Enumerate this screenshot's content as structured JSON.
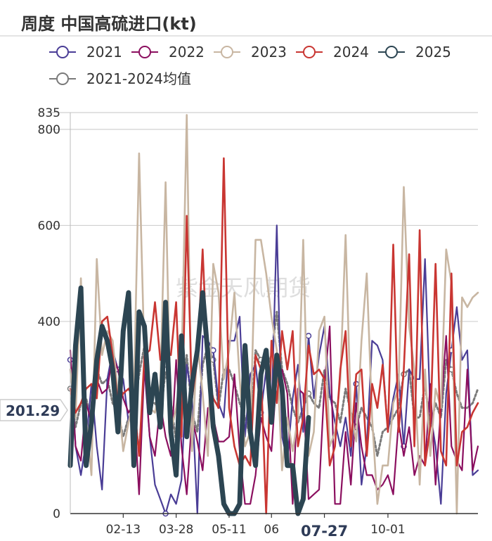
{
  "title": "周度 中国高硫进口(kt)",
  "watermark": "紫金天风期货",
  "pointer_value": "201.29",
  "colors": {
    "s2021": "#4a3d96",
    "s2022": "#8b0f5f",
    "s2023": "#c8b6a2",
    "s2024": "#c93632",
    "s2025": "#2c4552",
    "avg": "#7a7a7a",
    "grid": "#d0d0d0",
    "axis": "#333333"
  },
  "chart_data": {
    "type": "line",
    "title": "周度 中国高硫进口(kt)",
    "ylim": [
      0,
      835
    ],
    "y_ticks": [
      0,
      400,
      600,
      800,
      835
    ],
    "x_tick_labels": [
      "02-13",
      "03-28",
      "05-11",
      "06",
      "07-27",
      "10-01"
    ],
    "x_tick_positions": [
      10,
      20,
      30,
      38,
      48,
      60
    ],
    "x_highlight": "07-27",
    "pointer_value": 201.29,
    "num_weeks": 78,
    "legend": [
      "2021",
      "2022",
      "2023",
      "2024",
      "2025",
      "2021-2024均值"
    ],
    "series": [
      {
        "name": "2021",
        "color_key": "s2021",
        "width": 2.2,
        "values": [
          320,
          140,
          80,
          150,
          270,
          140,
          50,
          280,
          340,
          300,
          280,
          190,
          230,
          130,
          300,
          160,
          60,
          30,
          0,
          40,
          20,
          70,
          310,
          240,
          0,
          370,
          360,
          340,
          230,
          200,
          360,
          360,
          410,
          160,
          290,
          310,
          210,
          300,
          200,
          600,
          160,
          110,
          240,
          310,
          170,
          370,
          240,
          330,
          390,
          250,
          190,
          140,
          200,
          120,
          270,
          60,
          140,
          360,
          350,
          320,
          170,
          240,
          290,
          140,
          300,
          280,
          280,
          530,
          210,
          140,
          20,
          250,
          340,
          430,
          320,
          340,
          80,
          90
        ]
      },
      {
        "name": "2022",
        "color_key": "s2022",
        "width": 2.2,
        "values": [
          340,
          140,
          110,
          230,
          190,
          280,
          250,
          260,
          330,
          300,
          240,
          210,
          230,
          40,
          310,
          160,
          120,
          230,
          160,
          120,
          320,
          140,
          40,
          200,
          150,
          90,
          220,
          200,
          150,
          150,
          160,
          290,
          130,
          20,
          20,
          80,
          200,
          160,
          130,
          290,
          300,
          250,
          20,
          260,
          250,
          30,
          40,
          50,
          270,
          390,
          20,
          20,
          170,
          60,
          230,
          140,
          80,
          80,
          50,
          60,
          80,
          40,
          190,
          120,
          180,
          80,
          120,
          100,
          270,
          60,
          220,
          370,
          140,
          110,
          90,
          300,
          90,
          140
        ]
      },
      {
        "name": "2023",
        "color_key": "s2023",
        "width": 2.6,
        "values": [
          300,
          200,
          490,
          200,
          80,
          530,
          330,
          380,
          360,
          250,
          130,
          190,
          240,
          750,
          320,
          220,
          210,
          270,
          690,
          170,
          220,
          300,
          830,
          130,
          360,
          250,
          120,
          520,
          460,
          280,
          340,
          460,
          280,
          140,
          170,
          570,
          570,
          500,
          410,
          340,
          90,
          200,
          130,
          200,
          570,
          120,
          170,
          380,
          410,
          140,
          170,
          280,
          580,
          210,
          150,
          360,
          500,
          200,
          20,
          100,
          100,
          230,
          260,
          680,
          390,
          300,
          60,
          300,
          120,
          260,
          220,
          550,
          480,
          0,
          450,
          430,
          450,
          460
        ]
      },
      {
        "name": "2024",
        "color_key": "s2024",
        "width": 2.6,
        "values": [
          260,
          210,
          230,
          260,
          270,
          240,
          400,
          410,
          330,
          230,
          250,
          260,
          240,
          120,
          330,
          340,
          440,
          320,
          340,
          330,
          440,
          160,
          620,
          240,
          320,
          550,
          290,
          240,
          220,
          740,
          220,
          140,
          100,
          120,
          100,
          330,
          300,
          0,
          360,
          230,
          380,
          300,
          380,
          140,
          200,
          350,
          290,
          300,
          280,
          100,
          140,
          300,
          380,
          140,
          290,
          300,
          120,
          270,
          220,
          310,
          170,
          560,
          170,
          300,
          540,
          140,
          590,
          100,
          180,
          520,
          130,
          100,
          500,
          100,
          170,
          180,
          210,
          230
        ]
      },
      {
        "name": "2025",
        "color_key": "s2025",
        "width": 7,
        "values": [
          100,
          350,
          470,
          100,
          190,
          320,
          390,
          360,
          300,
          170,
          380,
          460,
          100,
          420,
          390,
          210,
          290,
          180,
          440,
          170,
          80,
          370,
          160,
          270,
          340,
          460,
          330,
          180,
          120,
          20,
          0,
          0,
          20,
          350,
          170,
          100,
          290,
          340,
          190,
          330,
          260,
          100,
          100,
          0,
          30,
          200
        ]
      },
      {
        "name": "2021-2024均值",
        "color_key": "avg",
        "width": 3,
        "dashed": true,
        "values": [
          260,
          180,
          230,
          240,
          190,
          300,
          270,
          280,
          230,
          210,
          160,
          200,
          210,
          290,
          350,
          230,
          230,
          200,
          300,
          230,
          150,
          210,
          330,
          210,
          170,
          310,
          350,
          320,
          220,
          300,
          300,
          270,
          230,
          200,
          160,
          340,
          320,
          300,
          330,
          420,
          300,
          270,
          220,
          190,
          220,
          250,
          230,
          220,
          300,
          240,
          230,
          190,
          260,
          210,
          180,
          220,
          200,
          180,
          120,
          170,
          180,
          200,
          220,
          290,
          300,
          200,
          200,
          270,
          180,
          230,
          200,
          320,
          300,
          250,
          220,
          220,
          230,
          260
        ]
      }
    ]
  }
}
